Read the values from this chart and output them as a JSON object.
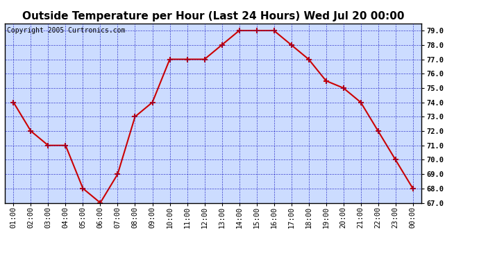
{
  "title": "Outside Temperature per Hour (Last 24 Hours) Wed Jul 20 00:00",
  "copyright": "Copyright 2005 Curtronics.com",
  "hours": [
    "01:00",
    "02:00",
    "03:00",
    "04:00",
    "05:00",
    "06:00",
    "07:00",
    "08:00",
    "09:00",
    "10:00",
    "11:00",
    "12:00",
    "13:00",
    "14:00",
    "15:00",
    "16:00",
    "17:00",
    "18:00",
    "19:00",
    "20:00",
    "21:00",
    "22:00",
    "23:00",
    "00:00"
  ],
  "temps": [
    74.0,
    72.0,
    71.0,
    71.0,
    68.0,
    67.0,
    69.0,
    73.0,
    74.0,
    77.0,
    77.0,
    77.0,
    78.0,
    79.0,
    79.0,
    79.0,
    78.0,
    77.0,
    75.5,
    75.0,
    74.0,
    72.0,
    70.0,
    68.0
  ],
  "ylim": [
    67.0,
    79.5
  ],
  "yticks": [
    67.0,
    68.0,
    69.0,
    70.0,
    71.0,
    72.0,
    73.0,
    74.0,
    75.0,
    76.0,
    77.0,
    78.0,
    79.0
  ],
  "line_color": "#cc0000",
  "marker": "+",
  "marker_size": 6,
  "marker_linewidth": 1.5,
  "line_width": 1.5,
  "grid_color": "#0000bb",
  "bg_color": "#ccdcff",
  "border_color": "#000000",
  "title_fontsize": 11,
  "copyright_fontsize": 7,
  "tick_fontsize": 7.5
}
